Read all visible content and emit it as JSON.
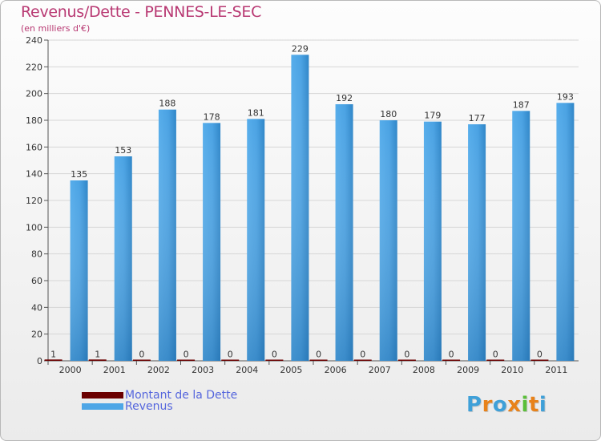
{
  "header": {
    "title": "Revenus/Dette - PENNES-LE-SEC",
    "subtitle": "(en milliers d'€)"
  },
  "legend": {
    "items": [
      {
        "label": "Montant de la Dette",
        "color": "#6b0000"
      },
      {
        "label": "Revenus",
        "color": "#4ea6e6"
      }
    ]
  },
  "brand": {
    "text": "Proxiti",
    "letter_colors": [
      "#3fa0d8",
      "#e8821a",
      "#3fa0d8",
      "#e8821a",
      "#5bbf3a",
      "#e8821a",
      "#3fa0d8"
    ]
  },
  "chart_data": {
    "type": "bar",
    "title": "Revenus/Dette - PENNES-LE-SEC",
    "subtitle": "(en milliers d'€)",
    "xlabel": "",
    "ylabel": "",
    "categories": [
      "2000",
      "2001",
      "2002",
      "2003",
      "2004",
      "2005",
      "2006",
      "2007",
      "2008",
      "2009",
      "2010",
      "2011"
    ],
    "series": [
      {
        "name": "Montant de la Dette",
        "color": "#6b0000",
        "values": [
          1,
          1,
          0,
          0,
          0,
          0,
          0,
          0,
          0,
          0,
          0,
          0
        ]
      },
      {
        "name": "Revenus",
        "color": "#4ea6e6",
        "values": [
          135,
          153,
          188,
          178,
          181,
          229,
          192,
          180,
          179,
          177,
          187,
          193
        ]
      }
    ],
    "ylim": [
      0,
      240
    ],
    "yticks": [
      0,
      20,
      40,
      60,
      80,
      100,
      120,
      140,
      160,
      180,
      200,
      220,
      240
    ],
    "grid": true,
    "legend_position": "bottom-left"
  }
}
